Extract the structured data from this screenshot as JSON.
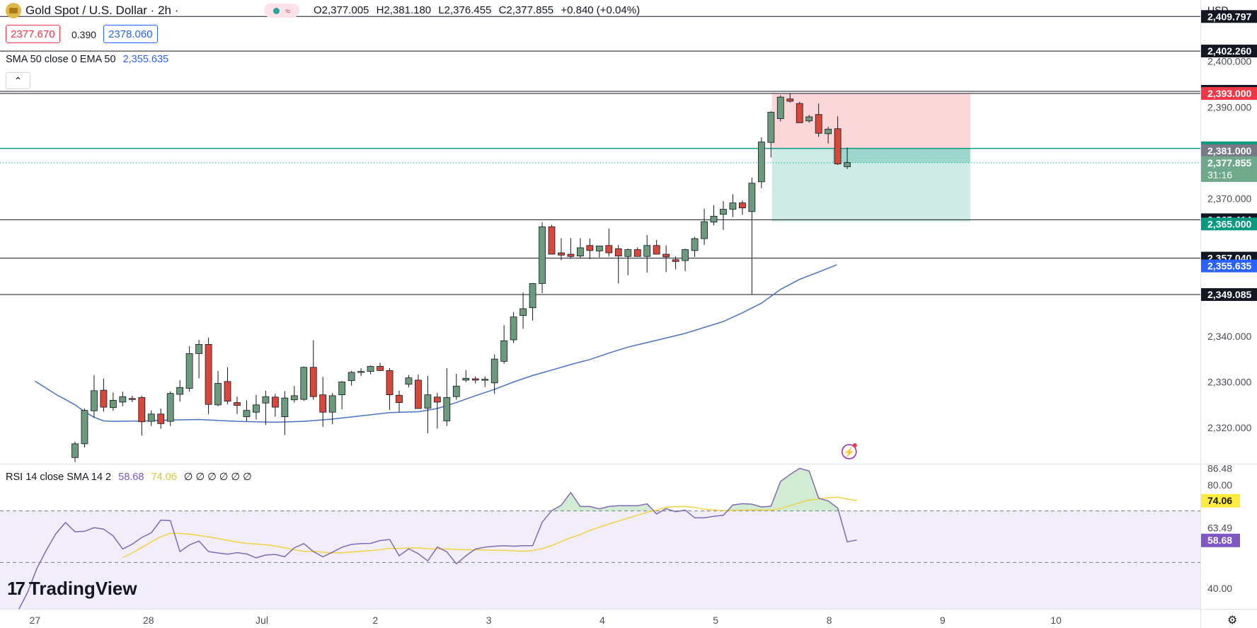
{
  "header": {
    "symbol": "Gold Spot / U.S. Dollar · 2h ·",
    "ohlc": {
      "o": "O2,377.005",
      "h": "H2,381.180",
      "l": "L2,376.455",
      "c": "C2,377.855",
      "chg": "+0.840 (+0.04%)"
    },
    "sell_price": "2377.670",
    "spread": "0.390",
    "buy_price": "2378.060",
    "indicator_label": "SMA 50 close 0 EMA 50",
    "indicator_value": "2,355.635",
    "currency": "USD",
    "collapse_icon": "chevron-up-icon"
  },
  "rsi_header": {
    "label": "RSI 14 close SMA 14 2",
    "rsi_value": "58.68",
    "sma_value": "74.06",
    "placeholders": "∅ ∅ ∅ ∅ ∅ ∅"
  },
  "brand": {
    "name": "TradingView"
  },
  "colors": {
    "up": "#6b9b7c",
    "down": "#d9473a",
    "ema": "#4a72c4",
    "rsi": "#7e6bb4",
    "rsi_sma": "#f1d245",
    "teal": "#089981",
    "red": "#f23645"
  },
  "chart_data": [
    {
      "type": "candlestick",
      "title": "Gold Spot / U.S. Dollar · 2h",
      "ylim": [
        2312.3,
        2413.4
      ],
      "x_ticks": [
        {
          "label": "27",
          "idx": -4.2
        },
        {
          "label": "28",
          "idx": 7.7
        },
        {
          "label": "Jul",
          "idx": 19.6
        },
        {
          "label": "2",
          "idx": 31.5
        },
        {
          "label": "3",
          "idx": 43.4
        },
        {
          "label": "4",
          "idx": 55.3
        },
        {
          "label": "5",
          "idx": 67.2
        },
        {
          "label": "8",
          "idx": 79.1
        },
        {
          "label": "9",
          "idx": 91.0
        },
        {
          "label": "10",
          "idx": 102.9
        }
      ],
      "y_ticks": [
        "2,320.000",
        "2,330.000",
        "2,340.000",
        "2,370.000",
        "2,390.000",
        "2,400.000"
      ],
      "candles": [
        [
          2313.5,
          2317.0,
          2312.5,
          2316.5
        ],
        [
          2316.5,
          2324.2,
          2315.7,
          2323.8
        ],
        [
          2323.7,
          2331.5,
          2322.2,
          2328.1
        ],
        [
          2328.2,
          2330.7,
          2323.5,
          2324.5
        ],
        [
          2324.4,
          2327.7,
          2323.7,
          2326.0
        ],
        [
          2325.6,
          2327.9,
          2324.7,
          2326.8
        ],
        [
          2326.4,
          2327.0,
          2325.6,
          2326.2
        ],
        [
          2326.6,
          2327.0,
          2318.3,
          2321.3
        ],
        [
          2321.4,
          2323.8,
          2320.4,
          2323.0
        ],
        [
          2323.0,
          2324.2,
          2319.8,
          2320.9
        ],
        [
          2321.4,
          2327.9,
          2320.4,
          2327.5
        ],
        [
          2327.3,
          2330.4,
          2325.7,
          2328.8
        ],
        [
          2328.6,
          2337.8,
          2327.9,
          2336.2
        ],
        [
          2336.2,
          2339.2,
          2330.8,
          2338.2
        ],
        [
          2338.2,
          2339.7,
          2323.0,
          2325.1
        ],
        [
          2325.0,
          2332.4,
          2324.7,
          2329.7
        ],
        [
          2330.1,
          2333.2,
          2325.1,
          2325.8
        ],
        [
          2325.5,
          2326.8,
          2323.0,
          2324.9
        ],
        [
          2322.4,
          2326.0,
          2321.4,
          2323.8
        ],
        [
          2323.4,
          2327.2,
          2321.8,
          2325.0
        ],
        [
          2325.4,
          2328.1,
          2320.6,
          2326.8
        ],
        [
          2326.7,
          2327.4,
          2322.4,
          2324.5
        ],
        [
          2322.4,
          2328.0,
          2318.4,
          2326.5
        ],
        [
          2326.1,
          2329.1,
          2325.5,
          2327.0
        ],
        [
          2326.2,
          2333.4,
          2325.9,
          2333.2
        ],
        [
          2333.2,
          2339.1,
          2326.1,
          2326.8
        ],
        [
          2327.2,
          2331.1,
          2320.2,
          2323.4
        ],
        [
          2323.4,
          2327.6,
          2320.8,
          2327.0
        ],
        [
          2327.2,
          2330.2,
          2324.0,
          2330.0
        ],
        [
          2330.3,
          2332.4,
          2329.2,
          2332.1
        ],
        [
          2332.1,
          2333.0,
          2331.3,
          2332.3
        ],
        [
          2332.3,
          2333.6,
          2331.7,
          2333.4
        ],
        [
          2333.4,
          2334.2,
          2332.4,
          2332.5
        ],
        [
          2332.5,
          2333.0,
          2323.9,
          2327.2
        ],
        [
          2327.1,
          2328.1,
          2323.4,
          2325.5
        ],
        [
          2329.5,
          2331.5,
          2328.8,
          2330.9
        ],
        [
          2330.4,
          2331.6,
          2324.2,
          2324.2
        ],
        [
          2324.3,
          2331.3,
          2318.8,
          2327.2
        ],
        [
          2326.7,
          2327.6,
          2319.8,
          2325.6
        ],
        [
          2321.5,
          2333.0,
          2320.4,
          2326.6
        ],
        [
          2326.8,
          2331.8,
          2326.1,
          2329.1
        ],
        [
          2330.4,
          2332.6,
          2330.0,
          2330.8
        ],
        [
          2330.7,
          2331.2,
          2329.7,
          2330.4
        ],
        [
          2330.6,
          2331.2,
          2328.9,
          2330.6
        ],
        [
          2329.8,
          2336.0,
          2327.4,
          2335.0
        ],
        [
          2334.5,
          2342.4,
          2334.0,
          2339.0
        ],
        [
          2339.2,
          2345.3,
          2338.5,
          2344.2
        ],
        [
          2344.5,
          2349.5,
          2341.6,
          2346.0
        ],
        [
          2346.2,
          2351.6,
          2343.4,
          2351.5
        ],
        [
          2351.5,
          2364.9,
          2349.4,
          2363.9
        ],
        [
          2363.9,
          2364.3,
          2357.9,
          2357.9
        ],
        [
          2358.2,
          2361.4,
          2356.6,
          2357.7
        ],
        [
          2357.9,
          2361.4,
          2356.9,
          2357.4
        ],
        [
          2357.5,
          2361.4,
          2357.0,
          2359.3
        ],
        [
          2359.8,
          2361.3,
          2356.8,
          2358.7
        ],
        [
          2358.6,
          2359.4,
          2357.2,
          2359.7
        ],
        [
          2359.8,
          2363.5,
          2357.4,
          2358.2
        ],
        [
          2359.1,
          2359.9,
          2351.5,
          2357.5
        ],
        [
          2357.4,
          2359.1,
          2353.3,
          2358.9
        ],
        [
          2358.9,
          2359.4,
          2357.4,
          2357.4
        ],
        [
          2357.4,
          2362.1,
          2353.9,
          2359.8
        ],
        [
          2359.8,
          2361.0,
          2357.9,
          2357.9
        ],
        [
          2357.9,
          2359.8,
          2354.0,
          2357.3
        ],
        [
          2356.7,
          2357.4,
          2354.6,
          2356.3
        ],
        [
          2356.5,
          2359.1,
          2354.2,
          2358.9
        ],
        [
          2358.7,
          2361.7,
          2357.3,
          2361.3
        ],
        [
          2361.3,
          2367.8,
          2359.9,
          2365.0
        ],
        [
          2364.9,
          2368.6,
          2364.2,
          2366.2
        ],
        [
          2366.6,
          2369.5,
          2363.2,
          2367.7
        ],
        [
          2367.7,
          2371.0,
          2366.0,
          2369.1
        ],
        [
          2369.1,
          2369.6,
          2366.5,
          2368.0
        ],
        [
          2367.2,
          2374.6,
          2349.1,
          2373.4
        ],
        [
          2373.7,
          2383.4,
          2372.3,
          2382.4
        ],
        [
          2382.3,
          2389.1,
          2379.0,
          2388.9
        ],
        [
          2387.5,
          2392.6,
          2386.9,
          2392.2
        ],
        [
          2391.8,
          2393.0,
          2391.0,
          2391.3
        ],
        [
          2390.8,
          2391.2,
          2386.6,
          2386.6
        ],
        [
          2387.0,
          2388.3,
          2386.6,
          2387.9
        ],
        [
          2388.4,
          2390.8,
          2383.5,
          2384.3
        ],
        [
          2384.2,
          2385.7,
          2382.1,
          2385.2
        ],
        [
          2385.3,
          2388.0,
          2377.4,
          2377.6
        ],
        [
          2377.0,
          2381.2,
          2376.5,
          2377.9
        ]
      ],
      "ema": [
        [
          -4.2,
          2330.2
        ],
        [
          -2,
          2327.3
        ],
        [
          0,
          2325.0
        ],
        [
          1,
          2323.5
        ],
        [
          2,
          2322.3
        ],
        [
          3,
          2321.5
        ],
        [
          4,
          2321.4
        ],
        [
          7.5,
          2321.5
        ],
        [
          10,
          2321.7
        ],
        [
          13,
          2321.8
        ],
        [
          17,
          2321.4
        ],
        [
          21,
          2321.2
        ],
        [
          24,
          2321.4
        ],
        [
          27,
          2321.9
        ],
        [
          30,
          2322.6
        ],
        [
          33,
          2323.3
        ],
        [
          36,
          2323.5
        ],
        [
          38,
          2324.2
        ],
        [
          40,
          2325.5
        ],
        [
          42,
          2327.0
        ],
        [
          44,
          2328.4
        ],
        [
          46,
          2330.0
        ],
        [
          48,
          2331.4
        ],
        [
          50,
          2332.6
        ],
        [
          52,
          2333.8
        ],
        [
          54,
          2334.9
        ],
        [
          56,
          2336.3
        ],
        [
          58,
          2337.6
        ],
        [
          60,
          2338.6
        ],
        [
          62,
          2339.6
        ],
        [
          64,
          2340.6
        ],
        [
          66,
          2341.9
        ],
        [
          68,
          2343.2
        ],
        [
          70,
          2345.1
        ],
        [
          72,
          2347.2
        ],
        [
          74,
          2350.2
        ],
        [
          76,
          2352.4
        ],
        [
          78,
          2354.0
        ],
        [
          79.9,
          2355.6
        ]
      ],
      "levels": [
        "2,409.797",
        "2,402.260",
        "2,393.467",
        "2,393.000",
        "2,381.325",
        "2,381.000",
        "2,377.855",
        "2,365.414",
        "2,365.000",
        "2,357.040",
        "2,355.635",
        "2,349.085"
      ],
      "countdown": "31:16",
      "position": {
        "entry": 2381.0,
        "stop": 2393.0,
        "target": 2365.0,
        "start_idx": 73.1,
        "end_idx": 93.9
      }
    },
    {
      "type": "line",
      "title": "RSI 14 close SMA 14 2",
      "ylim": [
        32,
        88
      ],
      "bands": {
        "upper": 70,
        "middle": 50,
        "lower": 30
      },
      "y_ticks": [
        "86.48",
        "80.00",
        "74.06",
        "63.49",
        "58.68",
        "40.00"
      ],
      "series": [
        {
          "name": "RSI",
          "values": [
            31.6,
            30.3,
            31.1,
            38.2,
            47.7,
            54.8,
            61.2,
            65.5,
            61.9,
            62.1,
            63.5,
            62.9,
            60.3,
            55.2,
            57.1,
            59.7,
            61.5,
            66.4,
            66.2,
            54.2,
            56.8,
            58.3,
            54.2,
            53.7,
            53.2,
            53.8,
            53.3,
            51.8,
            52.9,
            53.1,
            52.2,
            55.7,
            57.3,
            54.2,
            52.2,
            54.0,
            55.9,
            57.0,
            57.3,
            57.4,
            58.5,
            58.9,
            52.6,
            55.3,
            53.4,
            50.6,
            56.0,
            54.1,
            49.5,
            52.6,
            55.2,
            55.9,
            56.3,
            56.5,
            56.3,
            56.5,
            56.5,
            65.6,
            70.1,
            72.2,
            77.1,
            71.7,
            71.7,
            70.8,
            71.7,
            72.0,
            72.0,
            72.0,
            72.7,
            68.8,
            70.9,
            69.7,
            70.3,
            67.3,
            67.3,
            67.9,
            68.3,
            72.3,
            72.8,
            72.6,
            71.5,
            71.8,
            81.4,
            84.1,
            86.5,
            85.5,
            74.9,
            73.9,
            71.1,
            58.0,
            58.7
          ]
        },
        {
          "name": "SMA",
          "values": [
            null,
            null,
            null,
            null,
            null,
            null,
            null,
            null,
            null,
            null,
            null,
            null,
            null,
            null,
            null,
            null,
            null,
            null,
            null,
            null,
            null,
            null,
            null,
            null,
            null,
            null,
            null,
            null,
            null,
            null,
            null,
            null,
            null,
            null,
            null,
            null,
            null,
            null,
            null,
            null,
            null,
            null,
            null,
            null,
            null,
            null,
            null,
            null,
            null,
            null,
            null,
            null,
            null,
            null,
            null,
            null,
            null,
            null,
            null,
            null,
            null,
            null,
            null,
            null,
            null,
            null,
            null,
            null,
            null,
            null,
            null,
            null,
            null,
            null,
            null,
            null,
            null,
            null,
            null,
            null,
            null,
            null,
            null,
            null,
            null,
            null,
            null,
            null,
            null,
            null,
            null
          ]
        }
      ]
    }
  ]
}
